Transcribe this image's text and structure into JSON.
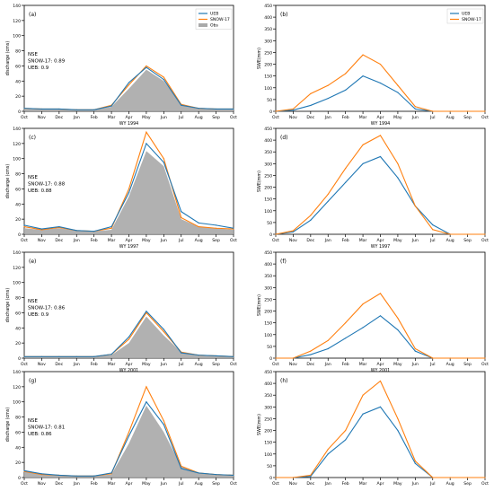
{
  "figure": {
    "colors": {
      "ueb": "#1f77b4",
      "snow17": "#ff7f0e",
      "obs": "#a9a9a9",
      "axis": "#000000"
    }
  },
  "chart_data": [
    {
      "panel_label": "(a)",
      "type": "area",
      "title": "",
      "xlabel": "WY 1994",
      "ylabel": "discharge (cms)",
      "x": [
        "Oct",
        "Nov",
        "Dec",
        "Jan",
        "Feb",
        "Mar",
        "Apr",
        "May",
        "Jun",
        "Jul",
        "Aug",
        "Sep",
        "Oct"
      ],
      "ylim": [
        0,
        140
      ],
      "yticks": [
        0,
        20,
        40,
        60,
        80,
        100,
        120,
        140
      ],
      "grid": false,
      "legend": {
        "position": "top-right",
        "entries": [
          "UEB",
          "SNOW-17",
          "Obs"
        ]
      },
      "annotation": [
        "NSE",
        "SNOW-17: 0.89",
        "UEB: 0.9"
      ],
      "series": [
        {
          "name": "Obs",
          "values": [
            3,
            3,
            3,
            2,
            2,
            6,
            30,
            55,
            40,
            10,
            4,
            3,
            3
          ]
        },
        {
          "name": "SNOW-17",
          "values": [
            4,
            3,
            3,
            2,
            2,
            8,
            35,
            60,
            45,
            9,
            4,
            3,
            3
          ]
        },
        {
          "name": "UEB",
          "values": [
            4,
            3,
            3,
            2,
            2,
            7,
            38,
            58,
            42,
            8,
            4,
            3,
            3
          ]
        }
      ]
    },
    {
      "panel_label": "(b)",
      "type": "line",
      "title": "",
      "xlabel": "WY 1994",
      "ylabel": "SWE(mm)",
      "x": [
        "Oct",
        "Nov",
        "Dec",
        "Jan",
        "Feb",
        "Mar",
        "Apr",
        "May",
        "Jun",
        "Jul",
        "Aug",
        "Sep",
        "Oct"
      ],
      "ylim": [
        0,
        450
      ],
      "yticks": [
        0,
        50,
        100,
        150,
        200,
        250,
        300,
        350,
        400,
        450
      ],
      "grid": false,
      "legend": {
        "position": "top-right",
        "entries": [
          "UEB",
          "SNOW-17"
        ]
      },
      "series": [
        {
          "name": "UEB",
          "values": [
            0,
            5,
            25,
            55,
            90,
            150,
            120,
            80,
            10,
            0,
            0,
            0,
            0
          ]
        },
        {
          "name": "SNOW-17",
          "values": [
            0,
            10,
            75,
            110,
            160,
            240,
            200,
            110,
            20,
            0,
            0,
            0,
            0
          ]
        }
      ]
    },
    {
      "panel_label": "(c)",
      "type": "area",
      "title": "",
      "xlabel": "WY 1997",
      "ylabel": "discharge (cms)",
      "x": [
        "Oct",
        "Nov",
        "Dec",
        "Jan",
        "Feb",
        "Mar",
        "Apr",
        "May",
        "Jun",
        "Jul",
        "Aug",
        "Sep",
        "Oct"
      ],
      "ylim": [
        0,
        140
      ],
      "yticks": [
        0,
        20,
        40,
        60,
        80,
        100,
        120,
        140
      ],
      "grid": false,
      "annotation": [
        "NSE",
        "SNOW-17: 0.88",
        "UEB: 0.88"
      ],
      "series": [
        {
          "name": "Obs",
          "values": [
            8,
            6,
            8,
            5,
            4,
            6,
            50,
            110,
            90,
            20,
            10,
            8,
            6
          ]
        },
        {
          "name": "SNOW-17",
          "values": [
            10,
            6,
            9,
            5,
            4,
            8,
            60,
            135,
            100,
            22,
            10,
            8,
            7
          ]
        },
        {
          "name": "UEB",
          "values": [
            12,
            7,
            10,
            5,
            4,
            10,
            55,
            120,
            95,
            30,
            15,
            12,
            8
          ]
        }
      ]
    },
    {
      "panel_label": "(d)",
      "type": "line",
      "title": "",
      "xlabel": "WY 1997",
      "ylabel": "SWE(mm)",
      "x": [
        "Oct",
        "Nov",
        "Dec",
        "Jan",
        "Feb",
        "Mar",
        "Apr",
        "May",
        "Jun",
        "Jul",
        "Aug",
        "Sep",
        "Oct"
      ],
      "ylim": [
        0,
        450
      ],
      "yticks": [
        0,
        50,
        100,
        150,
        200,
        250,
        300,
        350,
        400,
        450
      ],
      "grid": false,
      "series": [
        {
          "name": "UEB",
          "values": [
            0,
            10,
            60,
            140,
            220,
            300,
            330,
            240,
            120,
            40,
            0,
            0,
            0
          ]
        },
        {
          "name": "SNOW-17",
          "values": [
            0,
            15,
            80,
            170,
            280,
            380,
            420,
            300,
            120,
            20,
            0,
            0,
            0
          ]
        }
      ]
    },
    {
      "panel_label": "(e)",
      "type": "area",
      "title": "",
      "xlabel": "WY 2001",
      "ylabel": "discharge (cms)",
      "x": [
        "Oct",
        "Nov",
        "Dec",
        "Jan",
        "Feb",
        "Mar",
        "Apr",
        "May",
        "Jun",
        "Jul",
        "Aug",
        "Sep",
        "Oct"
      ],
      "ylim": [
        0,
        140
      ],
      "yticks": [
        0,
        20,
        40,
        60,
        80,
        100,
        120,
        140
      ],
      "grid": false,
      "annotation": [
        "NSE",
        "SNOW-17: 0.86",
        "UEB: 0.9"
      ],
      "series": [
        {
          "name": "Obs",
          "values": [
            2,
            2,
            2,
            2,
            2,
            4,
            20,
            55,
            30,
            8,
            4,
            3,
            2
          ]
        },
        {
          "name": "SNOW-17",
          "values": [
            2,
            2,
            2,
            2,
            2,
            5,
            25,
            60,
            35,
            8,
            4,
            3,
            2
          ]
        },
        {
          "name": "UEB",
          "values": [
            2,
            2,
            2,
            2,
            2,
            5,
            28,
            62,
            38,
            7,
            4,
            3,
            2
          ]
        }
      ]
    },
    {
      "panel_label": "(f)",
      "type": "line",
      "title": "",
      "xlabel": "WY 2001",
      "ylabel": "SWE(mm)",
      "x": [
        "Oct",
        "Nov",
        "Dec",
        "Jan",
        "Feb",
        "Mar",
        "Apr",
        "May",
        "Jun",
        "Jul",
        "Aug",
        "Sep",
        "Oct"
      ],
      "ylim": [
        0,
        450
      ],
      "yticks": [
        0,
        50,
        100,
        150,
        200,
        250,
        300,
        350,
        400,
        450
      ],
      "grid": false,
      "series": [
        {
          "name": "UEB",
          "values": [
            0,
            0,
            15,
            40,
            85,
            130,
            180,
            120,
            30,
            0,
            0,
            0,
            0
          ]
        },
        {
          "name": "SNOW-17",
          "values": [
            0,
            0,
            30,
            75,
            150,
            230,
            275,
            170,
            40,
            0,
            0,
            0,
            0
          ]
        }
      ]
    },
    {
      "panel_label": "(g)",
      "type": "area",
      "title": "",
      "xlabel": "WY 2008",
      "ylabel": "discharge (cms)",
      "x": [
        "Oct",
        "Nov",
        "Dec",
        "Jan",
        "Feb",
        "Mar",
        "Apr",
        "May",
        "Jun",
        "Jul",
        "Aug",
        "Sep",
        "Oct"
      ],
      "ylim": [
        0,
        140
      ],
      "yticks": [
        0,
        20,
        40,
        60,
        80,
        100,
        120,
        140
      ],
      "grid": false,
      "annotation": [
        "NSE",
        "SNOW-17: 0.81",
        "UEB: 0.86"
      ],
      "series": [
        {
          "name": "Obs",
          "values": [
            10,
            5,
            3,
            2,
            2,
            4,
            45,
            95,
            60,
            15,
            6,
            4,
            3
          ]
        },
        {
          "name": "SNOW-17",
          "values": [
            8,
            4,
            3,
            2,
            2,
            5,
            60,
            120,
            75,
            15,
            6,
            4,
            3
          ]
        },
        {
          "name": "UEB",
          "values": [
            9,
            5,
            3,
            2,
            2,
            6,
            55,
            100,
            70,
            12,
            6,
            4,
            3
          ]
        }
      ]
    },
    {
      "panel_label": "(h)",
      "type": "line",
      "title": "",
      "xlabel": "WY 2008",
      "ylabel": "SWE(mm)",
      "x": [
        "Oct",
        "Nov",
        "Dec",
        "Jan",
        "Feb",
        "Mar",
        "Apr",
        "May",
        "Jun",
        "Jul",
        "Aug",
        "Sep",
        "Oct"
      ],
      "ylim": [
        0,
        450
      ],
      "yticks": [
        0,
        50,
        100,
        150,
        200,
        250,
        300,
        350,
        400,
        450
      ],
      "grid": false,
      "series": [
        {
          "name": "UEB",
          "values": [
            0,
            0,
            5,
            100,
            160,
            270,
            300,
            200,
            60,
            0,
            0,
            0,
            0
          ]
        },
        {
          "name": "SNOW-17",
          "values": [
            0,
            0,
            10,
            120,
            200,
            350,
            410,
            250,
            70,
            0,
            0,
            0,
            0
          ]
        }
      ]
    }
  ]
}
